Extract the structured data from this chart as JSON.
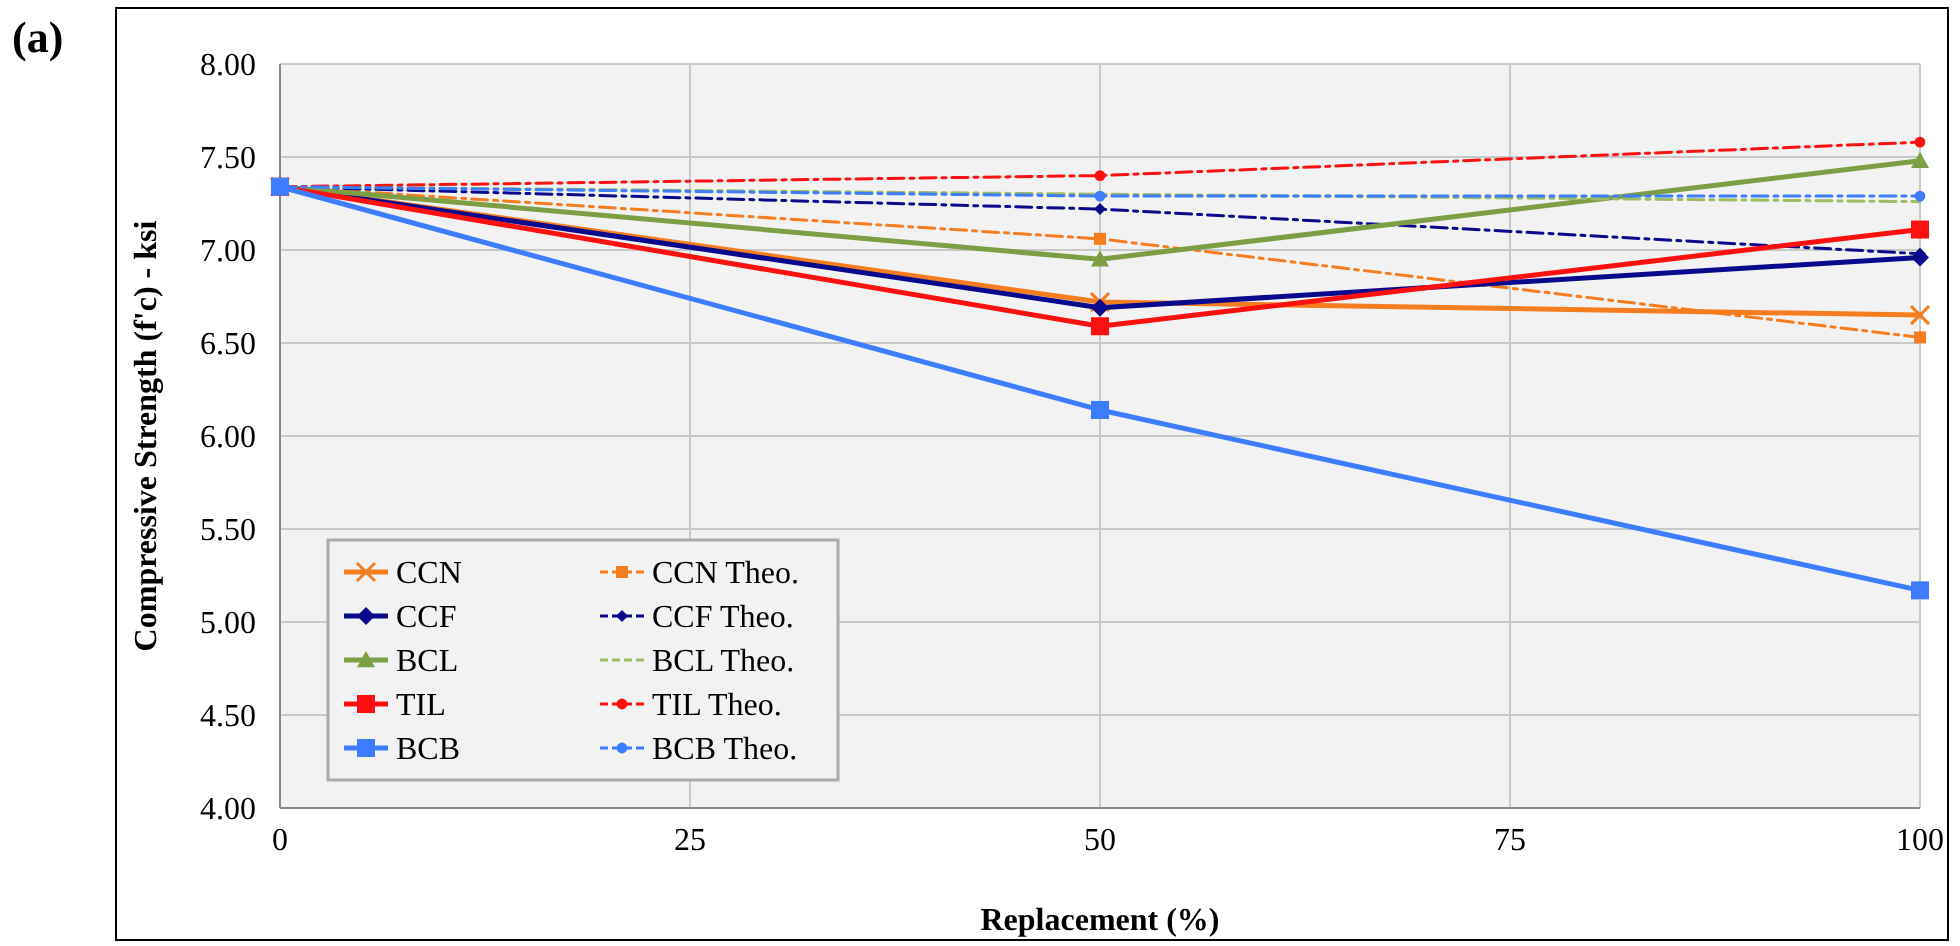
{
  "chart_data": {
    "type": "line",
    "xlabel": "Replacement (%)",
    "ylabel": "Compressive Strength (f'c) - ksi",
    "annotations": [
      "(a)"
    ],
    "x": [
      0,
      50,
      100
    ],
    "xlim": [
      0,
      100
    ],
    "xticks": [
      0,
      25,
      50,
      75,
      100
    ],
    "ylim": [
      4,
      8
    ],
    "yticks": [
      {
        "value": 4,
        "label": "4.00"
      },
      {
        "value": 4.5,
        "label": "4.50"
      },
      {
        "value": 5,
        "label": "5.00"
      },
      {
        "value": 5.5,
        "label": "5.50"
      },
      {
        "value": 6,
        "label": "6.00"
      },
      {
        "value": 6.5,
        "label": "6.50"
      },
      {
        "value": 7,
        "label": "7.00"
      },
      {
        "value": 7.5,
        "label": "7.50"
      },
      {
        "value": 8,
        "label": "8.00"
      }
    ],
    "grid": true,
    "legend": "bottom left",
    "series": [
      {
        "name": "CCN",
        "color": "#f57c1f",
        "values": [
          7.34,
          6.72,
          6.65
        ],
        "marker": "cross",
        "line_style": "solid"
      },
      {
        "name": "CCN Theo.",
        "color": "#f57c1f",
        "values": [
          7.34,
          7.06,
          6.53
        ],
        "marker": "square",
        "line_style": "dashed"
      },
      {
        "name": "CCF",
        "color": "#0a0a8c",
        "values": [
          7.34,
          6.69,
          6.96
        ],
        "marker": "diamond",
        "line_style": "solid"
      },
      {
        "name": "CCF Theo.",
        "color": "#0a0a8c",
        "values": [
          7.34,
          7.22,
          6.98
        ],
        "marker": "diamond",
        "line_style": "dashed"
      },
      {
        "name": "BCL",
        "color": "#7c9f45",
        "values": [
          7.34,
          6.95,
          7.48
        ],
        "marker": "triangle",
        "line_style": "solid"
      },
      {
        "name": "BCL Theo.",
        "color": "#9cbd62",
        "values": [
          7.34,
          7.3,
          7.26
        ],
        "marker": "none",
        "line_style": "dashed"
      },
      {
        "name": "TIL",
        "color": "#ff1010",
        "values": [
          7.34,
          6.59,
          7.11
        ],
        "marker": "square",
        "line_style": "solid"
      },
      {
        "name": "TIL Theo.",
        "color": "#ff1010",
        "values": [
          7.34,
          7.4,
          7.58
        ],
        "marker": "circle",
        "line_style": "dashed"
      },
      {
        "name": "BCB",
        "color": "#3d7bff",
        "values": [
          7.34,
          6.14,
          5.17
        ],
        "marker": "square",
        "line_style": "solid"
      },
      {
        "name": "BCB Theo.",
        "color": "#3d7bff",
        "values": [
          7.34,
          7.29,
          7.29
        ],
        "marker": "circle",
        "line_style": "dashed"
      }
    ]
  }
}
